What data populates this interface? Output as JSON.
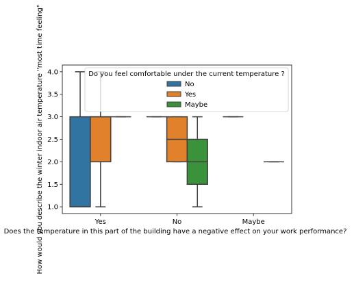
{
  "chart_data": {
    "type": "box",
    "title": "",
    "xlabel": "Does the temperature in this part of the building have a negative effect on your work performance?",
    "ylabel": "How would you describe the winter indoor air temperature \"most time feeling\"",
    "categories": [
      "Yes",
      "No",
      "Maybe"
    ],
    "ylim": [
      0.85,
      4.15
    ],
    "yticks": [
      1.0,
      1.5,
      2.0,
      2.5,
      3.0,
      3.5,
      4.0
    ],
    "ytick_labels": [
      "1.0",
      "1.5",
      "2.0",
      "2.5",
      "3.0",
      "3.5",
      "4.0"
    ],
    "legend": {
      "title": "Do you feel comfortable under the current temperature ?",
      "placement": "top-right"
    },
    "series": [
      {
        "name": "No",
        "color": "#3274a1",
        "boxes": [
          {
            "category": "Yes",
            "whislo": 1.0,
            "q1": 1.0,
            "med": 1.0,
            "q3": 3.0,
            "whishi": 4.0
          },
          {
            "category": "No",
            "whislo": 3.0,
            "q1": 3.0,
            "med": 3.0,
            "q3": 3.0,
            "whishi": 3.0
          },
          {
            "category": "Maybe",
            "whislo": 3.0,
            "q1": 3.0,
            "med": 3.0,
            "q3": 3.0,
            "whishi": 3.0
          }
        ]
      },
      {
        "name": "Yes",
        "color": "#e1812c",
        "boxes": [
          {
            "category": "Yes",
            "whislo": 1.0,
            "q1": 2.0,
            "med": 3.0,
            "q3": 3.0,
            "whishi": 4.0
          },
          {
            "category": "No",
            "whislo": 2.0,
            "q1": 2.0,
            "med": 2.5,
            "q3": 3.0,
            "whishi": 3.0
          }
        ]
      },
      {
        "name": "Maybe",
        "color": "#3a923a",
        "boxes": [
          {
            "category": "Yes",
            "whislo": 3.0,
            "q1": 3.0,
            "med": 3.0,
            "q3": 3.0,
            "whishi": 3.0
          },
          {
            "category": "No",
            "whislo": 1.0,
            "q1": 1.5,
            "med": 2.0,
            "q3": 2.5,
            "whishi": 3.0
          },
          {
            "category": "Maybe",
            "whislo": 2.0,
            "q1": 2.0,
            "med": 2.0,
            "q3": 2.0,
            "whishi": 2.0
          }
        ]
      }
    ]
  }
}
